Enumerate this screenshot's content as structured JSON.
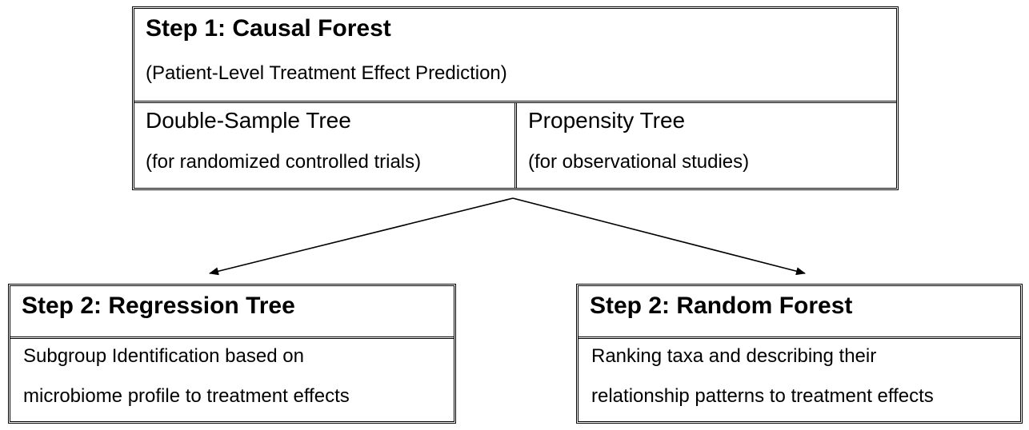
{
  "step1": {
    "title": "Step 1: Causal Forest",
    "subtitle": "(Patient-Level Treatment Effect Prediction)",
    "left": {
      "heading": "Double-Sample Tree",
      "note": "(for randomized controlled trials)"
    },
    "right": {
      "heading": "Propensity Tree",
      "note": "(for observational studies)"
    }
  },
  "step2_left": {
    "title": "Step 2: Regression Tree",
    "line1": "Subgroup Identification based on",
    "line2": "microbiome profile to treatment effects"
  },
  "step2_right": {
    "title": "Step 2: Random Forest",
    "line1": "Ranking taxa and describing their",
    "line2": "relationship patterns to treatment effects"
  },
  "colors": {
    "line": "#000000",
    "background": "#ffffff"
  }
}
